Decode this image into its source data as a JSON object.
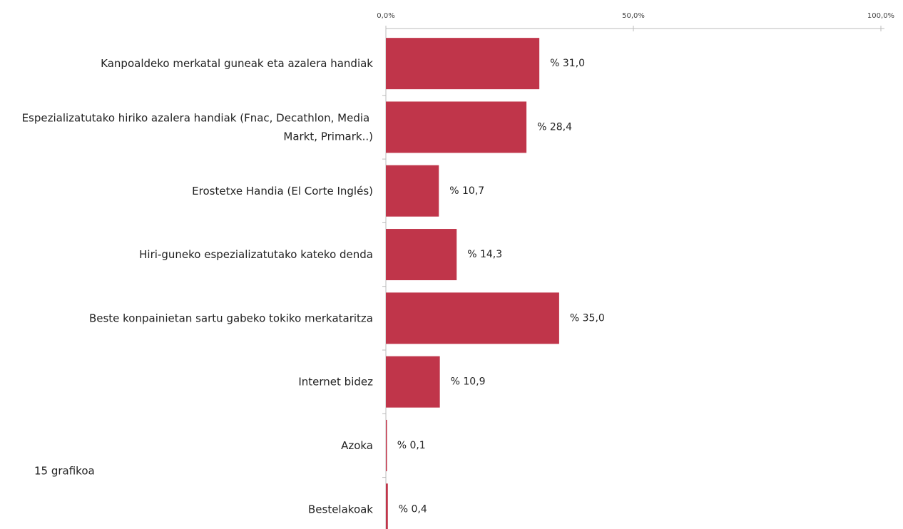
{
  "chart_data": {
    "type": "bar",
    "orientation": "horizontal",
    "categories": [
      "Kanpoaldeko merkatal guneak eta azalera handiak",
      "Espezializatutako hiriko azalera handiak (Fnac, Decathlon, Media Markt, Primark..)",
      "Erostetxe Handia (El Corte Inglés)",
      "Hiri-guneko espezializatutako kateko denda",
      "Beste konpainietan sartu gabeko tokiko merkataritza",
      "Internet bidez",
      "Azoka",
      "Bestelakoak"
    ],
    "values": [
      31.0,
      28.4,
      10.7,
      14.3,
      35.0,
      10.9,
      0.1,
      0.4
    ],
    "value_labels": [
      "% 31,0",
      "% 28,4",
      "% 10,7",
      "% 14,3",
      "% 35,0",
      "% 10,9",
      "% 0,1",
      "% 0,4"
    ],
    "color": "#c0354a",
    "xlim": [
      0,
      100
    ],
    "xticks": [
      {
        "value": 0,
        "label": "0,0%"
      },
      {
        "value": 50,
        "label": "50,0%"
      },
      {
        "value": 100,
        "label": "100,0%"
      }
    ],
    "caption": "15 grafikoa"
  }
}
